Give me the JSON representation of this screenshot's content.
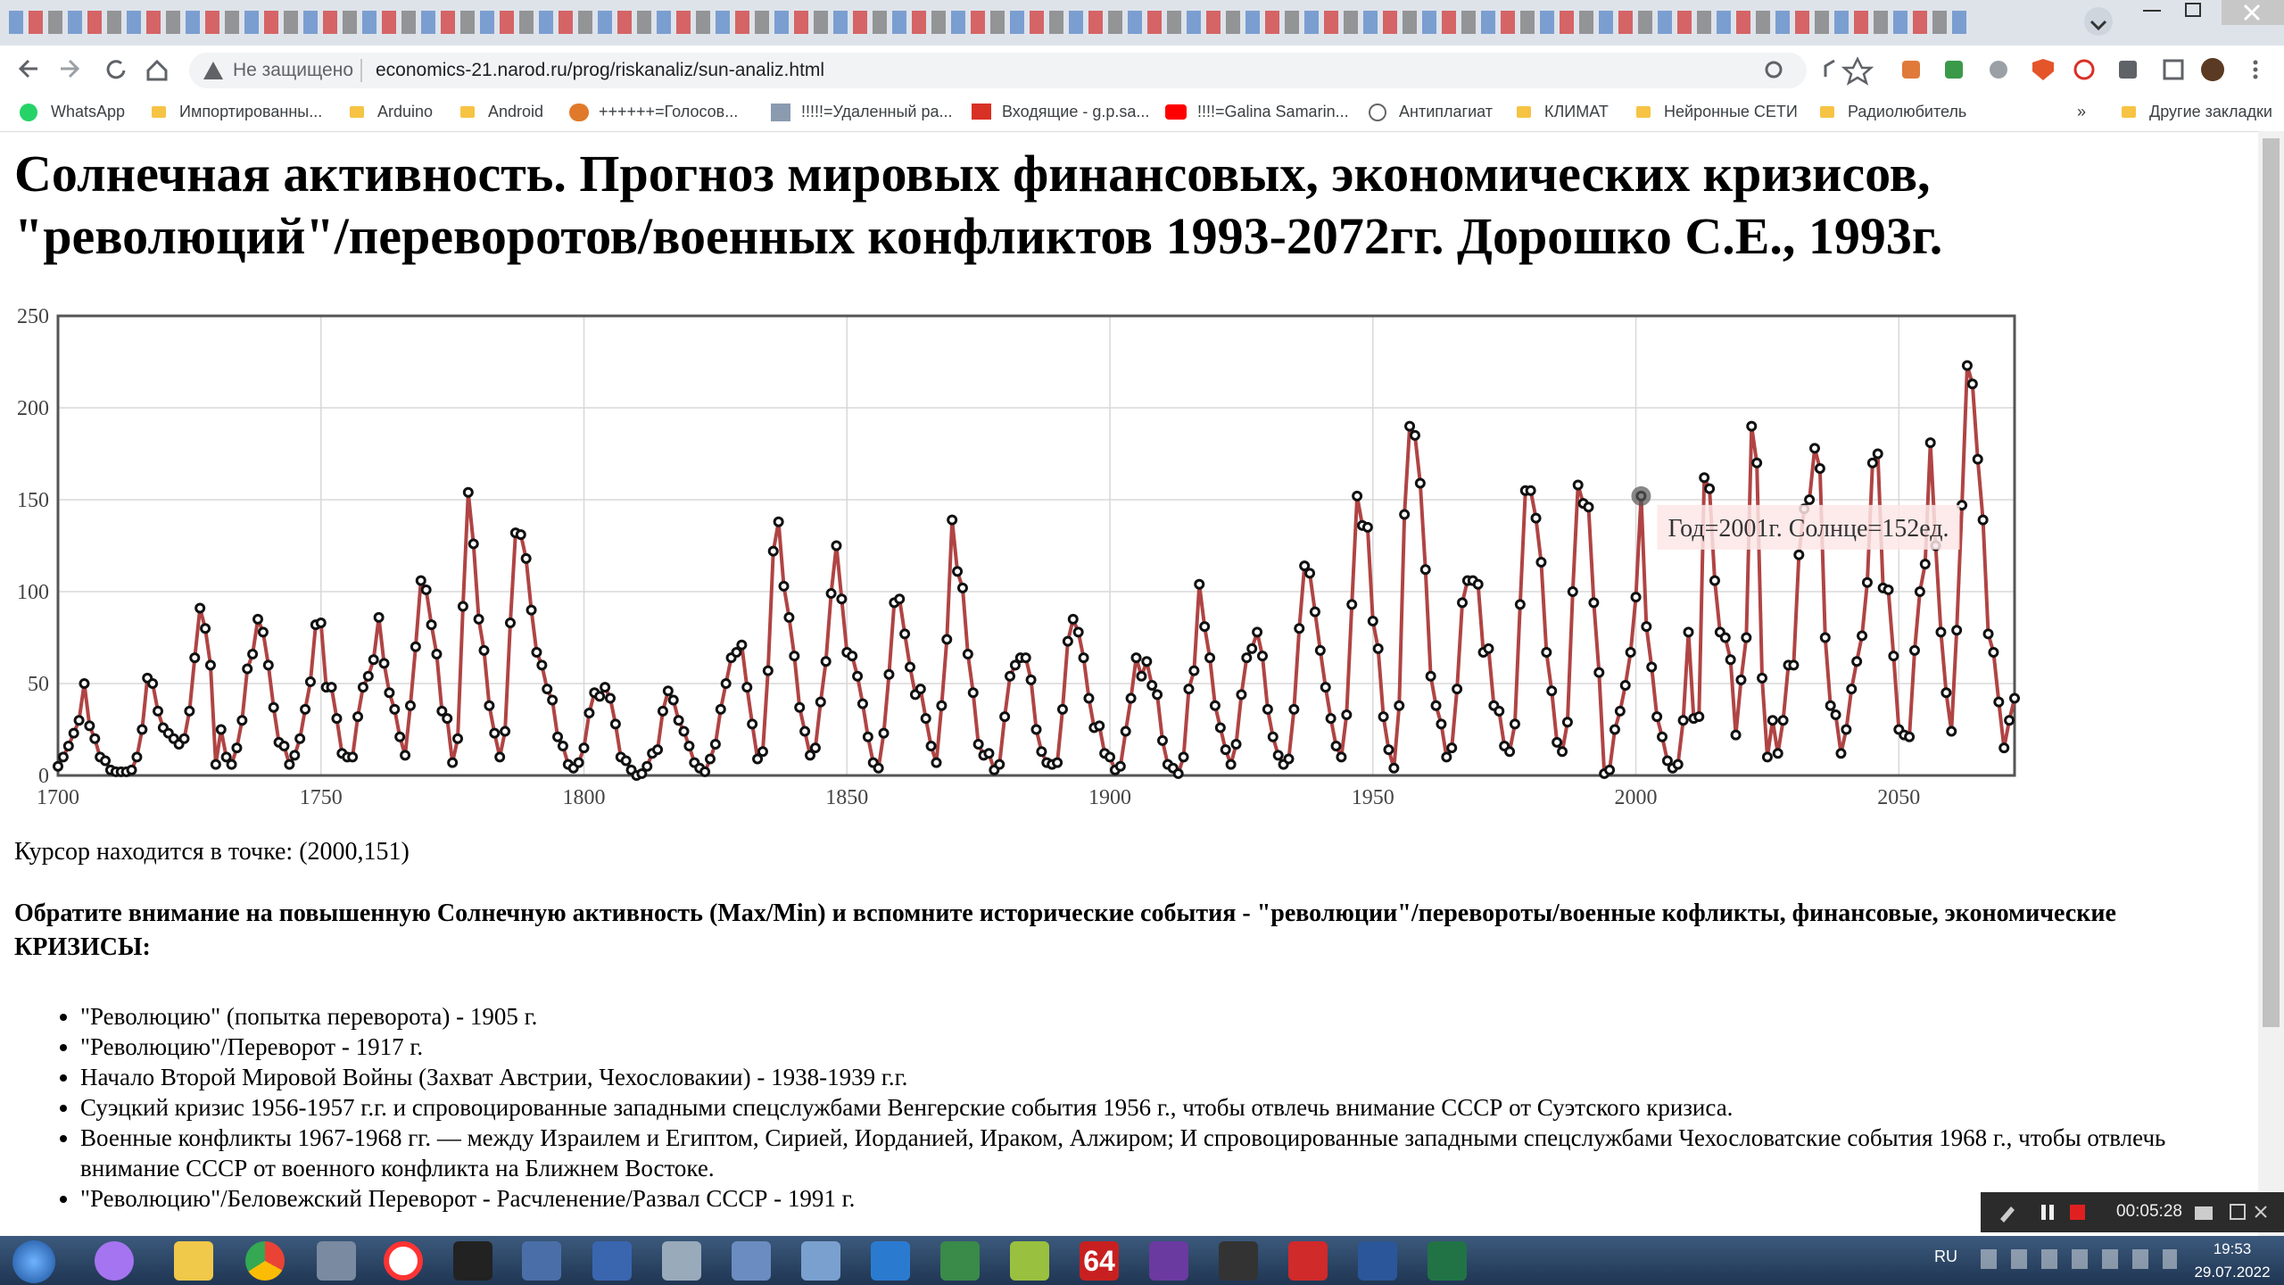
{
  "browser": {
    "security": "Не защищено",
    "url": "economics-21.narod.ru/prog/riskanaliz/sun-analiz.html",
    "bookmarks": [
      "WhatsApp",
      "Импортированны...",
      "Arduino",
      "Android",
      "++++++=Голосов...",
      "!!!!!=Удаленный ра...",
      "Входящие - g.p.sa...",
      "!!!!=Galina Samarin...",
      "Антиплагиат",
      "КЛИМАТ",
      "Нейронные СЕТИ",
      "Радиолюбитель"
    ],
    "more": "»",
    "other_bookmarks": "Другие закладки"
  },
  "page": {
    "title": "Солнечная активность. Прогноз мировых финансовых, экономических кризисов, \"революций\"/переворотов/военных конфликтов 1993-2072гг. Дорошко С.Е., 1993г.",
    "cursor": "Курсор находится в точке: (2000,151)",
    "note": "Обратите внимание на повышенную Солнечную активность (Max/Min) и вспомните исторические события - \"революции\"/перевороты/военные кофликты, финансовые, экономические КРИЗИСЫ:",
    "items": [
      "\"Революцию\" (попытка переворота) - 1905 г.",
      "\"Революцию\"/Переворот - 1917 г.",
      "Начало Второй Мировой Войны (Захват Австрии, Чехословакии) - 1938-1939 г.г.",
      "Суэцкий кризис 1956-1957 г.г. и спровоцированные западными спецслужбами Венгерские события 1956 г., чтобы отвлечь внимание СССР от Суэтского кризиса.",
      "Военные конфликты 1967-1968 гг. — между Израилем и Египтом, Сирией, Иорданией, Ираком, Алжиром; И спровоцированные западными спецслужбами Чехословатские события 1968 г., чтобы отвлечь внимание СССР от военного конфликта на Ближнем Востоке.",
      "\"Революцию\"/Беловежский Переворот - Расчленение/Развал СССР - 1991 г."
    ]
  },
  "chart_data": {
    "type": "line",
    "color": "#b04444",
    "marker_color": "#111111",
    "grid": true,
    "xlim": [
      1700,
      2072
    ],
    "xticks": [
      1700,
      1750,
      1800,
      1850,
      1900,
      1950,
      2000,
      2050
    ],
    "ylim": [
      0,
      250
    ],
    "yticks": [
      0,
      50,
      100,
      150,
      200,
      250
    ],
    "annotation": {
      "text": "Год=2001г. Солнце=152ед.",
      "x": 2001,
      "y": 152
    },
    "x": [
      1700,
      1701,
      1702,
      1703,
      1704,
      1705,
      1706,
      1707,
      1708,
      1709,
      1710,
      1711,
      1712,
      1713,
      1714,
      1715,
      1716,
      1717,
      1718,
      1719,
      1720,
      1721,
      1722,
      1723,
      1724,
      1725,
      1726,
      1727,
      1728,
      1729,
      1730,
      1731,
      1732,
      1733,
      1734,
      1735,
      1736,
      1737,
      1738,
      1739,
      1740,
      1741,
      1742,
      1743,
      1744,
      1745,
      1746,
      1747,
      1748,
      1749,
      1750,
      1751,
      1752,
      1753,
      1754,
      1755,
      1756,
      1757,
      1758,
      1759,
      1760,
      1761,
      1762,
      1763,
      1764,
      1765,
      1766,
      1767,
      1768,
      1769,
      1770,
      1771,
      1772,
      1773,
      1774,
      1775,
      1776,
      1777,
      1778,
      1779,
      1780,
      1781,
      1782,
      1783,
      1784,
      1785,
      1786,
      1787,
      1788,
      1789,
      1790,
      1791,
      1792,
      1793,
      1794,
      1795,
      1796,
      1797,
      1798,
      1799,
      1800,
      1801,
      1802,
      1803,
      1804,
      1805,
      1806,
      1807,
      1808,
      1809,
      1810,
      1811,
      1812,
      1813,
      1814,
      1815,
      1816,
      1817,
      1818,
      1819,
      1820,
      1821,
      1822,
      1823,
      1824,
      1825,
      1826,
      1827,
      1828,
      1829,
      1830,
      1831,
      1832,
      1833,
      1834,
      1835,
      1836,
      1837,
      1838,
      1839,
      1840,
      1841,
      1842,
      1843,
      1844,
      1845,
      1846,
      1847,
      1848,
      1849,
      1850,
      1851,
      1852,
      1853,
      1854,
      1855,
      1856,
      1857,
      1858,
      1859,
      1860,
      1861,
      1862,
      1863,
      1864,
      1865,
      1866,
      1867,
      1868,
      1869,
      1870,
      1871,
      1872,
      1873,
      1874,
      1875,
      1876,
      1877,
      1878,
      1879,
      1880,
      1881,
      1882,
      1883,
      1884,
      1885,
      1886,
      1887,
      1888,
      1889,
      1890,
      1891,
      1892,
      1893,
      1894,
      1895,
      1896,
      1897,
      1898,
      1899,
      1900,
      1901,
      1902,
      1903,
      1904,
      1905,
      1906,
      1907,
      1908,
      1909,
      1910,
      1911,
      1912,
      1913,
      1914,
      1915,
      1916,
      1917,
      1918,
      1919,
      1920,
      1921,
      1922,
      1923,
      1924,
      1925,
      1926,
      1927,
      1928,
      1929,
      1930,
      1931,
      1932,
      1933,
      1934,
      1935,
      1936,
      1937,
      1938,
      1939,
      1940,
      1941,
      1942,
      1943,
      1944,
      1945,
      1946,
      1947,
      1948,
      1949,
      1950,
      1951,
      1952,
      1953,
      1954,
      1955,
      1956,
      1957,
      1958,
      1959,
      1960,
      1961,
      1962,
      1963,
      1964,
      1965,
      1966,
      1967,
      1968,
      1969,
      1970,
      1971,
      1972,
      1973,
      1974,
      1975,
      1976,
      1977,
      1978,
      1979,
      1980,
      1981,
      1982,
      1983,
      1984,
      1985,
      1986,
      1987,
      1988,
      1989,
      1990,
      1991,
      1992,
      1993,
      1994,
      1995,
      1996,
      1997,
      1998,
      1999,
      2000,
      2001,
      2002,
      2003,
      2004,
      2005,
      2006,
      2007,
      2008,
      2009,
      2010,
      2011,
      2012,
      2013,
      2014,
      2015,
      2016,
      2017,
      2018,
      2019,
      2020,
      2021,
      2022,
      2023,
      2024,
      2025,
      2026,
      2027,
      2028,
      2029,
      2030,
      2031,
      2032,
      2033,
      2034,
      2035,
      2036,
      2037,
      2038,
      2039,
      2040,
      2041,
      2042,
      2043,
      2044,
      2045,
      2046,
      2047,
      2048,
      2049,
      2050,
      2051,
      2052,
      2053,
      2054,
      2055,
      2056,
      2057,
      2058,
      2059,
      2060,
      2061,
      2062,
      2063,
      2064,
      2065,
      2066,
      2067,
      2068,
      2069,
      2070,
      2071,
      2072
    ],
    "values": [
      5,
      10,
      16,
      23,
      30,
      50,
      27,
      20,
      10,
      8,
      3,
      2,
      2,
      2,
      3,
      10,
      25,
      53,
      50,
      35,
      26,
      23,
      20,
      17,
      20,
      35,
      64,
      91,
      80,
      60,
      6,
      25,
      10,
      6,
      15,
      30,
      58,
      66,
      85,
      78,
      60,
      37,
      18,
      16,
      6,
      11,
      20,
      36,
      51,
      82,
      83,
      48,
      48,
      31,
      12,
      10,
      10,
      32,
      48,
      54,
      63,
      86,
      61,
      45,
      36,
      21,
      11,
      38,
      70,
      106,
      101,
      82,
      66,
      35,
      31,
      7,
      20,
      92,
      154,
      126,
      85,
      68,
      38,
      23,
      10,
      24,
      83,
      132,
      131,
      118,
      90,
      67,
      60,
      47,
      41,
      21,
      16,
      6,
      4,
      7,
      15,
      34,
      45,
      43,
      48,
      42,
      28,
      10,
      8,
      3,
      0,
      1,
      5,
      12,
      14,
      35,
      46,
      41,
      30,
      24,
      16,
      7,
      4,
      2,
      9,
      17,
      36,
      50,
      64,
      67,
      71,
      48,
      28,
      9,
      13,
      57,
      122,
      138,
      103,
      86,
      65,
      37,
      24,
      11,
      15,
      40,
      62,
      99,
      125,
      96,
      67,
      65,
      54,
      39,
      21,
      7,
      4,
      23,
      55,
      94,
      96,
      77,
      59,
      44,
      47,
      31,
      16,
      7,
      38,
      74,
      139,
      111,
      102,
      66,
      45,
      17,
      11,
      12,
      3,
      6,
      32,
      54,
      60,
      64,
      64,
      52,
      25,
      13,
      7,
      6,
      7,
      36,
      73,
      85,
      78,
      64,
      42,
      26,
      27,
      12,
      10,
      3,
      5,
      24,
      42,
      64,
      54,
      62,
      49,
      44,
      19,
      6,
      4,
      1,
      10,
      47,
      57,
      104,
      81,
      64,
      38,
      26,
      14,
      6,
      17,
      44,
      64,
      69,
      78,
      65,
      36,
      21,
      11,
      6,
      9,
      36,
      80,
      114,
      110,
      89,
      68,
      48,
      31,
      16,
      10,
      33,
      93,
      152,
      136,
      135,
      84,
      69,
      32,
      14,
      4,
      38,
      142,
      190,
      185,
      159,
      112,
      54,
      38,
      28,
      10,
      15,
      47,
      94,
      106,
      106,
      104,
      67,
      69,
      38,
      35,
      16,
      13,
      28,
      93,
      155,
      155,
      140,
      116,
      67,
      46,
      18,
      13,
      29,
      100,
      158,
      148,
      146,
      94,
      56,
      1,
      3,
      25,
      35,
      49,
      67,
      97,
      152,
      81,
      59,
      32,
      21,
      8,
      4,
      6,
      30,
      78,
      31,
      32,
      162,
      156,
      106,
      78,
      75,
      63,
      22,
      52,
      75,
      190,
      170,
      53,
      10,
      30,
      12,
      30,
      60,
      60,
      120,
      145,
      150,
      178,
      167,
      75,
      38,
      33,
      12,
      25,
      47,
      62,
      76,
      105,
      170,
      175,
      102,
      101,
      65,
      25,
      22,
      21,
      68,
      100,
      115,
      181,
      125,
      78,
      45,
      24,
      79,
      147,
      223,
      213,
      172,
      139,
      77,
      67,
      40,
      15,
      30,
      42
    ]
  },
  "recorder": {
    "time": "00:05:28"
  },
  "taskbar": {
    "app_label": "64",
    "lang": "RU",
    "time": "19:53",
    "date": "29.07.2022"
  }
}
